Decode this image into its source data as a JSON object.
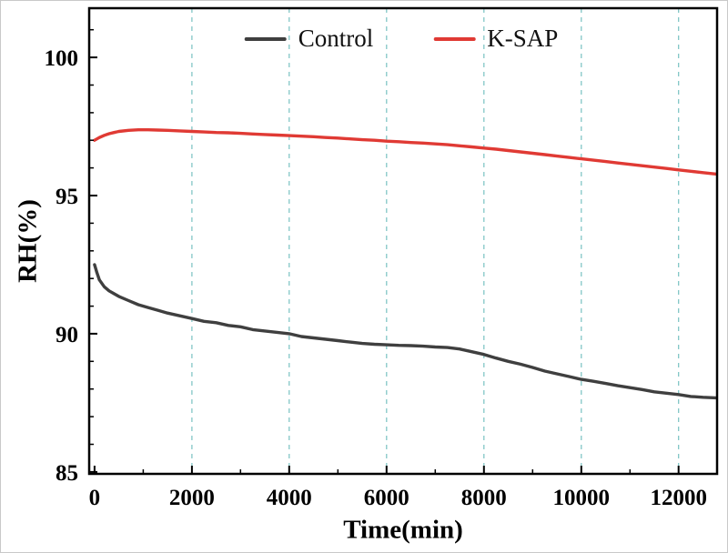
{
  "figure": {
    "background": "#ffffff"
  },
  "chart_data": {
    "type": "line",
    "title": "",
    "xlabel": "Time(min)",
    "ylabel": "RH(%)",
    "xlim": [
      -110,
      12790
    ],
    "ylim": [
      84.93,
      101.78
    ],
    "xticks": [
      0,
      2000,
      4000,
      6000,
      8000,
      10000,
      12000
    ],
    "yticks": [
      85,
      90,
      95,
      100
    ],
    "x_minor_step": 1000,
    "y_minor_step": 1,
    "grid": {
      "vertical": true,
      "horizontal": false,
      "color": "#3fa8a8",
      "dash": "5,5"
    },
    "legend_position": "top-center",
    "series": [
      {
        "name": "Control",
        "color": "#3f3f3f",
        "points": [
          [
            0,
            92.5
          ],
          [
            50,
            92.2
          ],
          [
            100,
            91.95
          ],
          [
            200,
            91.7
          ],
          [
            300,
            91.55
          ],
          [
            400,
            91.45
          ],
          [
            500,
            91.35
          ],
          [
            700,
            91.2
          ],
          [
            900,
            91.05
          ],
          [
            1100,
            90.95
          ],
          [
            1300,
            90.85
          ],
          [
            1500,
            90.75
          ],
          [
            1750,
            90.65
          ],
          [
            2000,
            90.55
          ],
          [
            2250,
            90.45
          ],
          [
            2500,
            90.4
          ],
          [
            2750,
            90.3
          ],
          [
            3000,
            90.25
          ],
          [
            3250,
            90.15
          ],
          [
            3500,
            90.1
          ],
          [
            3750,
            90.05
          ],
          [
            4000,
            90.0
          ],
          [
            4250,
            89.9
          ],
          [
            4500,
            89.85
          ],
          [
            4750,
            89.8
          ],
          [
            5000,
            89.75
          ],
          [
            5250,
            89.7
          ],
          [
            5500,
            89.65
          ],
          [
            5750,
            89.62
          ],
          [
            6000,
            89.6
          ],
          [
            6250,
            89.58
          ],
          [
            6500,
            89.57
          ],
          [
            6750,
            89.55
          ],
          [
            7000,
            89.52
          ],
          [
            7250,
            89.5
          ],
          [
            7500,
            89.45
          ],
          [
            7750,
            89.35
          ],
          [
            8000,
            89.25
          ],
          [
            8250,
            89.12
          ],
          [
            8500,
            89.0
          ],
          [
            8750,
            88.9
          ],
          [
            9000,
            88.78
          ],
          [
            9250,
            88.65
          ],
          [
            9500,
            88.55
          ],
          [
            9750,
            88.45
          ],
          [
            10000,
            88.35
          ],
          [
            10250,
            88.28
          ],
          [
            10500,
            88.2
          ],
          [
            10750,
            88.12
          ],
          [
            11000,
            88.05
          ],
          [
            11250,
            87.98
          ],
          [
            11500,
            87.9
          ],
          [
            11750,
            87.85
          ],
          [
            12000,
            87.8
          ],
          [
            12250,
            87.73
          ],
          [
            12500,
            87.7
          ],
          [
            12760,
            87.68
          ]
        ]
      },
      {
        "name": "K-SAP",
        "color": "#e03a34",
        "points": [
          [
            0,
            97.0
          ],
          [
            100,
            97.1
          ],
          [
            200,
            97.18
          ],
          [
            300,
            97.24
          ],
          [
            400,
            97.28
          ],
          [
            500,
            97.32
          ],
          [
            700,
            97.36
          ],
          [
            900,
            97.38
          ],
          [
            1100,
            97.38
          ],
          [
            1300,
            97.37
          ],
          [
            1500,
            97.36
          ],
          [
            1750,
            97.34
          ],
          [
            2000,
            97.32
          ],
          [
            2250,
            97.3
          ],
          [
            2500,
            97.28
          ],
          [
            2750,
            97.27
          ],
          [
            3000,
            97.25
          ],
          [
            3250,
            97.23
          ],
          [
            3500,
            97.21
          ],
          [
            3750,
            97.19
          ],
          [
            4000,
            97.17
          ],
          [
            4250,
            97.15
          ],
          [
            4500,
            97.13
          ],
          [
            4750,
            97.1
          ],
          [
            5000,
            97.08
          ],
          [
            5250,
            97.05
          ],
          [
            5500,
            97.02
          ],
          [
            5750,
            97.0
          ],
          [
            6000,
            96.97
          ],
          [
            6250,
            96.95
          ],
          [
            6500,
            96.92
          ],
          [
            6750,
            96.9
          ],
          [
            7000,
            96.87
          ],
          [
            7250,
            96.84
          ],
          [
            7500,
            96.8
          ],
          [
            7750,
            96.76
          ],
          [
            8000,
            96.72
          ],
          [
            8250,
            96.68
          ],
          [
            8500,
            96.63
          ],
          [
            8750,
            96.58
          ],
          [
            9000,
            96.53
          ],
          [
            9250,
            96.48
          ],
          [
            9500,
            96.43
          ],
          [
            9750,
            96.38
          ],
          [
            10000,
            96.33
          ],
          [
            10250,
            96.28
          ],
          [
            10500,
            96.23
          ],
          [
            10750,
            96.18
          ],
          [
            11000,
            96.13
          ],
          [
            11250,
            96.08
          ],
          [
            11500,
            96.03
          ],
          [
            11750,
            95.98
          ],
          [
            12000,
            95.93
          ],
          [
            12250,
            95.88
          ],
          [
            12500,
            95.83
          ],
          [
            12760,
            95.78
          ]
        ]
      }
    ]
  }
}
